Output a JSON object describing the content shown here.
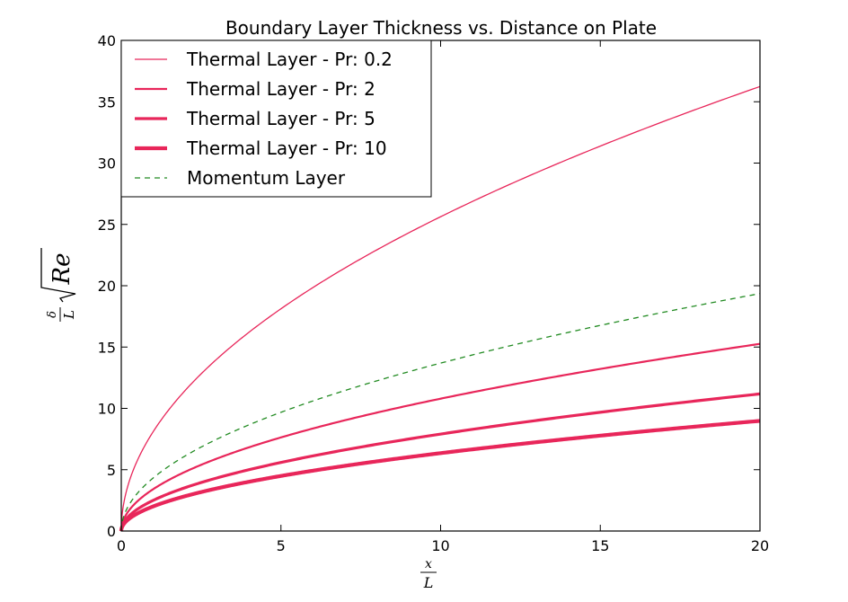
{
  "chart_data": {
    "type": "line",
    "title": "Boundary Layer Thickness vs. Distance on Plate",
    "xlabel": {
      "numerator": "x",
      "denominator": "L"
    },
    "ylabel": {
      "numerator": "δ",
      "denominator": "L",
      "radicand": "Re"
    },
    "xlim": [
      0,
      20
    ],
    "ylim": [
      0,
      40
    ],
    "xticks": [
      0,
      5,
      10,
      15,
      20
    ],
    "yticks": [
      0,
      5,
      10,
      15,
      20,
      25,
      30,
      35,
      40
    ],
    "grid": false,
    "legend_position": "upper-left",
    "x": [
      0,
      0.1,
      0.25,
      0.5,
      1,
      2,
      3,
      4,
      5,
      6,
      8,
      10,
      12,
      14,
      16,
      18,
      20
    ],
    "series": [
      {
        "name": "Thermal Layer - Pr: 0.2",
        "color": "#e8265a",
        "style": "solid",
        "weight": "thin",
        "values": [
          0,
          2.56,
          4.05,
          5.73,
          8.11,
          11.46,
          14.04,
          16.21,
          18.12,
          19.85,
          22.92,
          25.63,
          28.07,
          30.32,
          32.41,
          34.38,
          36.24
        ]
      },
      {
        "name": "Thermal Layer - Pr: 2",
        "color": "#e8265a",
        "style": "solid",
        "weight": "medium",
        "values": [
          0,
          1.08,
          1.71,
          2.41,
          3.41,
          4.83,
          5.91,
          6.83,
          7.63,
          8.36,
          9.65,
          10.79,
          11.82,
          12.77,
          13.65,
          14.48,
          15.26
        ]
      },
      {
        "name": "Thermal Layer - Pr: 5",
        "color": "#e8265a",
        "style": "solid",
        "weight": "thick",
        "values": [
          0,
          0.79,
          1.25,
          1.77,
          2.5,
          3.54,
          4.33,
          5.0,
          5.59,
          6.12,
          7.07,
          7.91,
          8.66,
          9.35,
          10.0,
          10.61,
          11.18
        ]
      },
      {
        "name": "Thermal Layer - Pr: 10",
        "color": "#e8265a",
        "style": "solid",
        "weight": "heavy",
        "values": [
          0,
          0.64,
          1.01,
          1.42,
          2.01,
          2.84,
          3.48,
          4.02,
          4.49,
          4.92,
          5.68,
          6.35,
          6.96,
          7.51,
          8.03,
          8.52,
          8.98
        ]
      },
      {
        "name": "Momentum Layer",
        "color": "#228b22",
        "style": "dashed",
        "weight": "thin",
        "values": [
          0,
          1.37,
          2.16,
          3.06,
          4.33,
          6.12,
          7.5,
          8.66,
          9.68,
          10.61,
          12.25,
          13.69,
          15.0,
          16.2,
          17.32,
          18.37,
          19.36
        ]
      }
    ]
  }
}
